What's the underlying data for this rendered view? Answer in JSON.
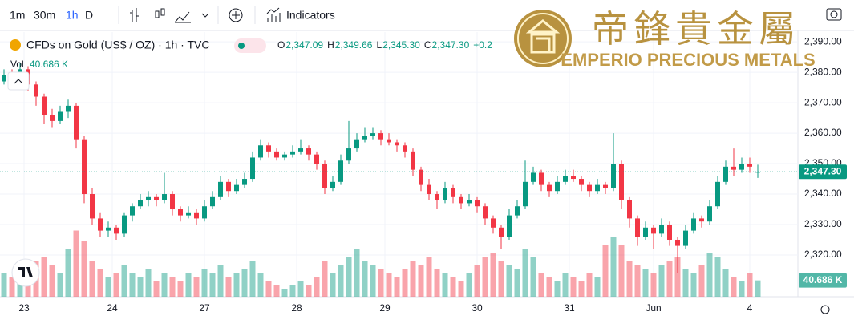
{
  "toolbar": {
    "intervals": [
      "1m",
      "30m",
      "1h",
      "D"
    ],
    "indicators": "Indicators"
  },
  "header": {
    "ohlc_keys": [
      "O",
      "H",
      "L",
      "C"
    ],
    "ohlc": [
      "2,347.09",
      "2,349.66",
      "2,345.30",
      "2,347.30"
    ],
    "change": "+0.2"
  },
  "logo": {
    "chinese": "帝鋒貴金屬",
    "english": "EMPERIO PRECIOUS METALS"
  },
  "chart_data": {
    "type": "candlestick",
    "title": "CFDs on Gold (US$ / OZ) · 1h · TVC",
    "up_color": "#089981",
    "down_color": "#f23645",
    "candles": [
      [
        2377,
        2381,
        2376,
        2379
      ],
      [
        2379,
        2381,
        2376,
        2378
      ],
      [
        2378,
        2383,
        2377,
        2381
      ],
      [
        2381,
        2382,
        2374,
        2376
      ],
      [
        2376,
        2377,
        2369,
        2372
      ],
      [
        2372,
        2373,
        2363,
        2366
      ],
      [
        2366,
        2368,
        2362,
        2364
      ],
      [
        2364,
        2369,
        2363,
        2367
      ],
      [
        2367,
        2371,
        2365,
        2369
      ],
      [
        2369,
        2370,
        2355,
        2358
      ],
      [
        2358,
        2359,
        2337,
        2340
      ],
      [
        2340,
        2342,
        2330,
        2332
      ],
      [
        2332,
        2334,
        2326,
        2328
      ],
      [
        2328,
        2331,
        2326,
        2329
      ],
      [
        2329,
        2330,
        2325,
        2327
      ],
      [
        2327,
        2334,
        2326,
        2333
      ],
      [
        2333,
        2337,
        2331,
        2336
      ],
      [
        2336,
        2340,
        2335,
        2338
      ],
      [
        2338,
        2341,
        2336,
        2339
      ],
      [
        2339,
        2340,
        2336,
        2338
      ],
      [
        2338,
        2347,
        2337,
        2340
      ],
      [
        2340,
        2341,
        2333,
        2335
      ],
      [
        2335,
        2336,
        2331,
        2333
      ],
      [
        2333,
        2336,
        2332,
        2334
      ],
      [
        2334,
        2335,
        2330,
        2332
      ],
      [
        2332,
        2338,
        2331,
        2336
      ],
      [
        2336,
        2341,
        2335,
        2339
      ],
      [
        2339,
        2346,
        2338,
        2344
      ],
      [
        2344,
        2345,
        2339,
        2341
      ],
      [
        2341,
        2345,
        2340,
        2343
      ],
      [
        2343,
        2347,
        2342,
        2345
      ],
      [
        2345,
        2354,
        2344,
        2352
      ],
      [
        2352,
        2358,
        2351,
        2356
      ],
      [
        2356,
        2357,
        2352,
        2354
      ],
      [
        2354,
        2355,
        2351,
        2352
      ],
      [
        2352,
        2354,
        2351,
        2353
      ],
      [
        2353,
        2356,
        2352,
        2354
      ],
      [
        2354,
        2358,
        2353,
        2355
      ],
      [
        2355,
        2356,
        2351,
        2353
      ],
      [
        2353,
        2354,
        2348,
        2350
      ],
      [
        2350,
        2351,
        2340,
        2342
      ],
      [
        2342,
        2346,
        2341,
        2344
      ],
      [
        2344,
        2353,
        2343,
        2351
      ],
      [
        2351,
        2364,
        2350,
        2355
      ],
      [
        2355,
        2360,
        2354,
        2358
      ],
      [
        2358,
        2362,
        2357,
        2359
      ],
      [
        2359,
        2362,
        2358,
        2360
      ],
      [
        2360,
        2361,
        2356,
        2358
      ],
      [
        2358,
        2360,
        2356,
        2357
      ],
      [
        2357,
        2358,
        2354,
        2356
      ],
      [
        2356,
        2357,
        2352,
        2354
      ],
      [
        2354,
        2355,
        2346,
        2348
      ],
      [
        2348,
        2349,
        2341,
        2343
      ],
      [
        2343,
        2345,
        2338,
        2340
      ],
      [
        2340,
        2341,
        2335,
        2338
      ],
      [
        2338,
        2344,
        2337,
        2342
      ],
      [
        2342,
        2343,
        2337,
        2339
      ],
      [
        2339,
        2340,
        2335,
        2337
      ],
      [
        2337,
        2340,
        2336,
        2338
      ],
      [
        2338,
        2339,
        2334,
        2336
      ],
      [
        2336,
        2337,
        2330,
        2332
      ],
      [
        2332,
        2333,
        2327,
        2329
      ],
      [
        2329,
        2330,
        2322,
        2326
      ],
      [
        2326,
        2335,
        2325,
        2333
      ],
      [
        2333,
        2338,
        2332,
        2336
      ],
      [
        2336,
        2351,
        2335,
        2344
      ],
      [
        2344,
        2349,
        2343,
        2347
      ],
      [
        2347,
        2348,
        2341,
        2343
      ],
      [
        2343,
        2344,
        2339,
        2341
      ],
      [
        2341,
        2346,
        2340,
        2344
      ],
      [
        2344,
        2348,
        2343,
        2346
      ],
      [
        2346,
        2348,
        2344,
        2345
      ],
      [
        2345,
        2346,
        2341,
        2343
      ],
      [
        2343,
        2344,
        2339,
        2341
      ],
      [
        2341,
        2345,
        2340,
        2343
      ],
      [
        2343,
        2344,
        2340,
        2342
      ],
      [
        2342,
        2360,
        2341,
        2350
      ],
      [
        2350,
        2351,
        2335,
        2338
      ],
      [
        2338,
        2339,
        2329,
        2332
      ],
      [
        2332,
        2333,
        2323,
        2326
      ],
      [
        2326,
        2331,
        2325,
        2329
      ],
      [
        2329,
        2330,
        2322,
        2327
      ],
      [
        2327,
        2332,
        2326,
        2330
      ],
      [
        2330,
        2331,
        2323,
        2325
      ],
      [
        2325,
        2326,
        2314,
        2323
      ],
      [
        2323,
        2330,
        2322,
        2328
      ],
      [
        2328,
        2334,
        2327,
        2332
      ],
      [
        2332,
        2333,
        2329,
        2331
      ],
      [
        2331,
        2338,
        2330,
        2336
      ],
      [
        2336,
        2346,
        2335,
        2344
      ],
      [
        2344,
        2351,
        2343,
        2349
      ],
      [
        2349,
        2355,
        2346,
        2348
      ],
      [
        2348,
        2352,
        2347,
        2350
      ],
      [
        2350,
        2352,
        2347,
        2349
      ],
      [
        2347.09,
        2349.66,
        2345.3,
        2347.3
      ]
    ],
    "volume_title": "Vol",
    "volumes": [
      60,
      50,
      40,
      70,
      90,
      100,
      80,
      60,
      120,
      165,
      140,
      90,
      70,
      50,
      60,
      80,
      60,
      50,
      70,
      40,
      60,
      50,
      40,
      60,
      50,
      70,
      60,
      80,
      50,
      60,
      70,
      90,
      60,
      40,
      30,
      20,
      30,
      40,
      30,
      50,
      90,
      60,
      80,
      100,
      120,
      90,
      80,
      70,
      60,
      50,
      70,
      90,
      80,
      100,
      70,
      60,
      50,
      40,
      60,
      80,
      100,
      110,
      90,
      80,
      70,
      120,
      100,
      60,
      50,
      40,
      60,
      50,
      40,
      60,
      50,
      130,
      150,
      130,
      90,
      80,
      70,
      60,
      80,
      90,
      100,
      70,
      60,
      80,
      110,
      100,
      70,
      50,
      40,
      60,
      40.686
    ],
    "volume_label": "40.686 K",
    "volume_ylim": [
      0,
      200
    ],
    "last_price_label": "2,347.30",
    "ylim": [
      2306.3,
      2393.2
    ],
    "yticks": [
      {
        "value": 2320,
        "label": "2,320.00"
      },
      {
        "value": 2330,
        "label": "2,330.00"
      },
      {
        "value": 2340,
        "label": "2,340.00"
      },
      {
        "value": 2350,
        "label": "2,350.00"
      },
      {
        "value": 2360,
        "label": "2,360.00"
      },
      {
        "value": 2370,
        "label": "2,370.00"
      },
      {
        "value": 2380,
        "label": "2,380.00"
      },
      {
        "value": 2390,
        "label": "2,390.00"
      }
    ],
    "xlim": [
      -0.5,
      99
    ],
    "xticks": [
      {
        "value": 2.5,
        "label": "23"
      },
      {
        "value": 13.5,
        "label": "24"
      },
      {
        "value": 25,
        "label": "27"
      },
      {
        "value": 36.5,
        "label": "28"
      },
      {
        "value": 47.5,
        "label": "29"
      },
      {
        "value": 59,
        "label": "30"
      },
      {
        "value": 70.5,
        "label": "31"
      },
      {
        "value": 81,
        "label": "Jun"
      },
      {
        "value": 93,
        "label": "4"
      }
    ]
  }
}
